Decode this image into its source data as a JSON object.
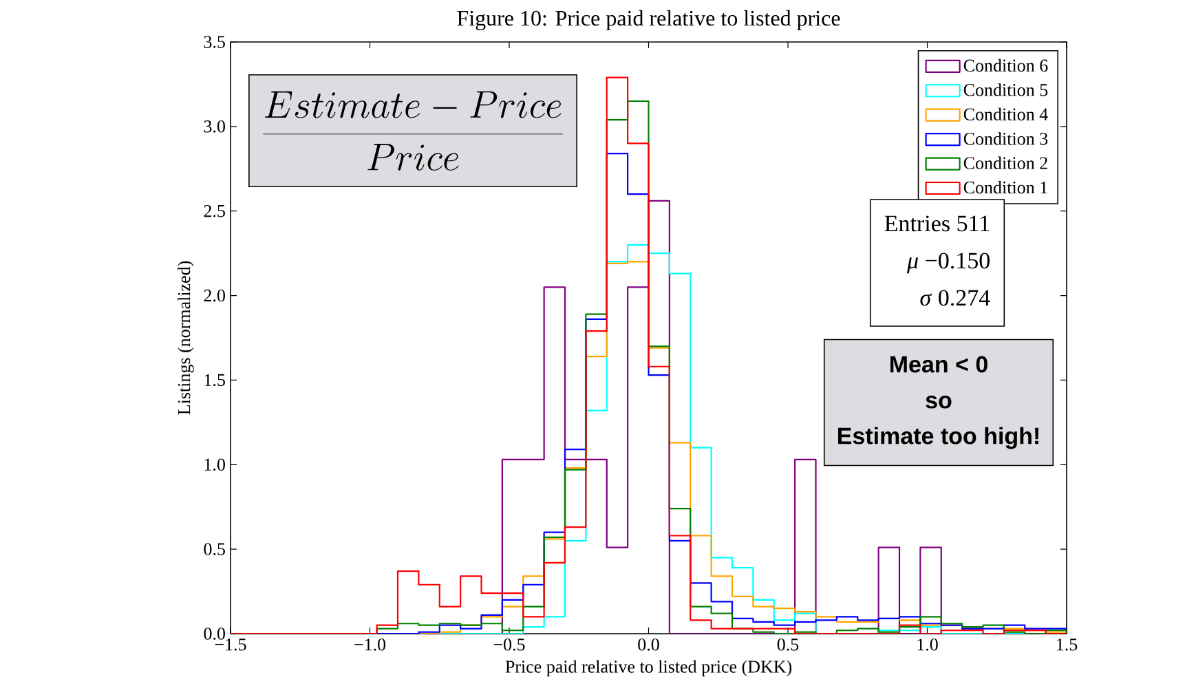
{
  "chart_data": {
    "type": "histogram",
    "title": "Figure 10: Price paid relative to listed price",
    "xlabel": "Price paid relative to listed price (DKK)",
    "ylabel": "Listings (normalized)",
    "bins": [
      -1.5,
      -1.425,
      -1.35,
      -1.275,
      -1.2,
      -1.125,
      -1.05,
      -0.975,
      -0.9,
      -0.825,
      -0.75,
      -0.675,
      -0.6,
      -0.525,
      -0.45,
      -0.375,
      -0.3,
      -0.225,
      -0.15,
      -0.075,
      0,
      0.075,
      0.15,
      0.225,
      0.3,
      0.375,
      0.45,
      0.525,
      0.6,
      0.675,
      0.75,
      0.825,
      0.9,
      0.975,
      1.05,
      1.125,
      1.2,
      1.275,
      1.35,
      1.425,
      1.5
    ],
    "series": [
      {
        "name": "Condition 6",
        "color": "#800080",
        "values": [
          0,
          0,
          0,
          0,
          0,
          0,
          0,
          0,
          0,
          0,
          0,
          0,
          0,
          1.03,
          1.03,
          2.05,
          1.03,
          1.03,
          0.51,
          2.05,
          2.56,
          0,
          0,
          0,
          0,
          0,
          0,
          1.03,
          0,
          0,
          0,
          0.51,
          0,
          0.51,
          0,
          0,
          0,
          0,
          0,
          0
        ]
      },
      {
        "name": "Condition 5",
        "color": "#00ffff",
        "values": [
          0,
          0,
          0,
          0,
          0,
          0,
          0,
          0,
          0,
          0,
          0,
          0,
          0,
          0,
          0.04,
          0.1,
          0.55,
          1.32,
          2.2,
          2.3,
          2.25,
          2.13,
          1.1,
          0.45,
          0.39,
          0.2,
          0.08,
          0.12,
          0,
          0,
          0,
          0.02,
          0.02,
          0.04,
          0,
          0,
          0,
          0,
          0,
          0
        ]
      },
      {
        "name": "Condition 4",
        "color": "#ffa500",
        "values": [
          0,
          0,
          0,
          0,
          0,
          0,
          0,
          0,
          0,
          0,
          0.01,
          0.05,
          0.1,
          0.16,
          0.34,
          0.56,
          0.98,
          1.64,
          2.19,
          2.2,
          1.69,
          1.13,
          0.58,
          0.34,
          0.22,
          0.16,
          0.15,
          0.13,
          0.1,
          0.07,
          0.07,
          0.09,
          0.08,
          0.05,
          0.05,
          0.03,
          0.03,
          0.03,
          0.02,
          0.01
        ]
      },
      {
        "name": "Condition 3",
        "color": "#0000ff",
        "values": [
          0,
          0,
          0,
          0,
          0,
          0,
          0,
          0,
          0,
          0.01,
          0.05,
          0.03,
          0.11,
          0.2,
          0.29,
          0.6,
          1.09,
          1.86,
          2.84,
          2.6,
          1.53,
          0.55,
          0.3,
          0.19,
          0.09,
          0.07,
          0.05,
          0.07,
          0.08,
          0.1,
          0.08,
          0.09,
          0.1,
          0.06,
          0.05,
          0.03,
          0.03,
          0.05,
          0.03,
          0.03
        ]
      },
      {
        "name": "Condition 2",
        "color": "#008000",
        "values": [
          0,
          0,
          0,
          0,
          0,
          0,
          0,
          0.03,
          0.06,
          0.05,
          0.06,
          0.05,
          0.06,
          0.02,
          0.16,
          0.57,
          0.97,
          1.89,
          3.04,
          3.15,
          1.7,
          0.74,
          0.16,
          0.12,
          0.03,
          0.01,
          0,
          0.01,
          0,
          0.02,
          0.03,
          0.01,
          0.04,
          0.1,
          0.06,
          0.04,
          0.05,
          0.01,
          0,
          0.02
        ]
      },
      {
        "name": "Condition 1",
        "color": "#ff0000",
        "values": [
          0,
          0,
          0,
          0,
          0,
          0,
          0,
          0.05,
          0.37,
          0.29,
          0.16,
          0.34,
          0.24,
          0.24,
          0.1,
          0.42,
          0.63,
          1.79,
          3.29,
          2.9,
          1.58,
          0.58,
          0.08,
          0.03,
          0.03,
          0.03,
          0.03,
          0,
          0,
          0,
          0,
          0,
          0.05,
          0,
          0.02,
          0.02,
          0,
          0.02,
          0.02,
          0
        ]
      }
    ],
    "xlim": [
      -1.5,
      1.5
    ],
    "ylim": [
      0,
      3.5
    ],
    "xticks": [
      {
        "value": -1.5,
        "label": "−1.5"
      },
      {
        "value": -1.0,
        "label": "−1.0"
      },
      {
        "value": -0.5,
        "label": "−0.5"
      },
      {
        "value": 0,
        "label": "0.0"
      },
      {
        "value": 0.5,
        "label": "0.5"
      },
      {
        "value": 1.0,
        "label": "1.0"
      },
      {
        "value": 1.5,
        "label": "1.5"
      }
    ],
    "yticks": [
      {
        "value": 0,
        "label": "0.0"
      },
      {
        "value": 0.5,
        "label": "0.5"
      },
      {
        "value": 1.0,
        "label": "1.0"
      },
      {
        "value": 1.5,
        "label": "1.5"
      },
      {
        "value": 2.0,
        "label": "2.0"
      },
      {
        "value": 2.5,
        "label": "2.5"
      },
      {
        "value": 3.0,
        "label": "3.0"
      },
      {
        "value": 3.5,
        "label": "3.5"
      }
    ],
    "legend": "top right",
    "annotations": [
      "\\frac{Estimate - Price}{Price}",
      "Entries 511",
      "*μ* −0.150",
      "*σ* 0.274",
      "Mean < 0",
      "so",
      "Estimate too high!"
    ]
  }
}
